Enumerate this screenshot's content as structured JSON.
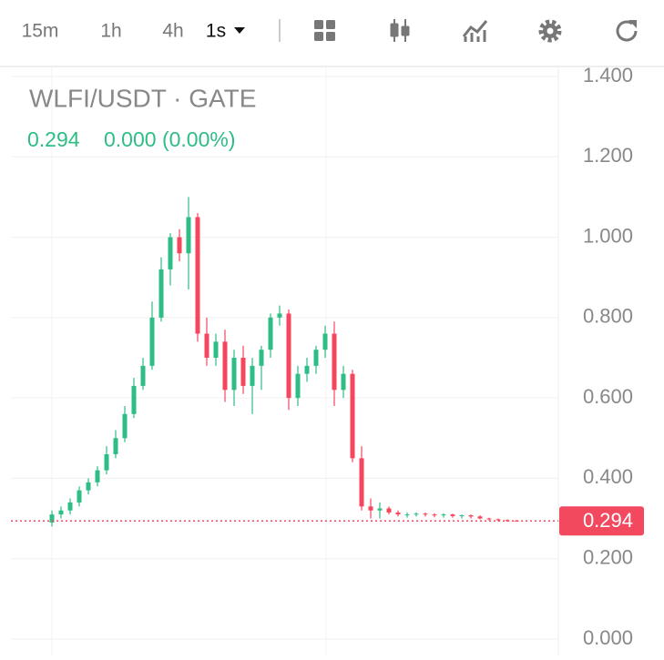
{
  "toolbar": {
    "intervals": [
      "15m",
      "1h",
      "4h",
      "1s"
    ]
  },
  "chart_data": {
    "type": "candlestick",
    "title": "WLFI/USDT · GATE",
    "last_price": 0.294,
    "change": "0.000 (0.00%)",
    "up_color": "#2ebd85",
    "down_color": "#f6465d",
    "ylim": [
      0,
      1.4
    ],
    "yticks": [
      {
        "value": 0,
        "label": "0.000"
      },
      {
        "value": 0.2,
        "label": "0.200"
      },
      {
        "value": 0.4,
        "label": "0.400"
      },
      {
        "value": 0.6,
        "label": "0.600"
      },
      {
        "value": 0.8,
        "label": "0.800"
      },
      {
        "value": 1.0,
        "label": "1.000"
      },
      {
        "value": 1.2,
        "label": "1.200"
      },
      {
        "value": 1.4,
        "label": "1.400"
      }
    ],
    "grid": true,
    "open": [
      0.29,
      0.31,
      0.32,
      0.34,
      0.37,
      0.39,
      0.42,
      0.46,
      0.5,
      0.56,
      0.63,
      0.68,
      0.8,
      0.92,
      1.0,
      0.96,
      1.05,
      0.76,
      0.7,
      0.74,
      0.62,
      0.7,
      0.63,
      0.68,
      0.72,
      0.8,
      0.81,
      0.6,
      0.66,
      0.68,
      0.72,
      0.76,
      0.62,
      0.66,
      0.45,
      0.33,
      0.32,
      0.325,
      0.315,
      0.31,
      0.31,
      0.312,
      0.31,
      0.308,
      0.31,
      0.306,
      0.308,
      0.305,
      0.3,
      0.298,
      0.296,
      0.295
    ],
    "high": [
      0.32,
      0.33,
      0.35,
      0.38,
      0.4,
      0.43,
      0.48,
      0.52,
      0.58,
      0.65,
      0.7,
      0.84,
      0.95,
      1.01,
      1.02,
      1.1,
      1.06,
      0.8,
      0.76,
      0.77,
      0.72,
      0.73,
      0.7,
      0.73,
      0.81,
      0.83,
      0.82,
      0.68,
      0.7,
      0.73,
      0.78,
      0.79,
      0.68,
      0.67,
      0.48,
      0.35,
      0.34,
      0.33,
      0.32,
      0.315,
      0.315,
      0.315,
      0.313,
      0.313,
      0.312,
      0.31,
      0.31,
      0.308,
      0.302,
      0.3,
      0.298,
      0.296
    ],
    "low": [
      0.28,
      0.3,
      0.31,
      0.33,
      0.36,
      0.38,
      0.41,
      0.45,
      0.49,
      0.55,
      0.62,
      0.67,
      0.79,
      0.88,
      0.94,
      0.87,
      0.74,
      0.68,
      0.68,
      0.59,
      0.58,
      0.61,
      0.56,
      0.62,
      0.7,
      0.78,
      0.57,
      0.58,
      0.64,
      0.66,
      0.7,
      0.58,
      0.6,
      0.44,
      0.32,
      0.3,
      0.3,
      0.31,
      0.305,
      0.302,
      0.305,
      0.305,
      0.303,
      0.302,
      0.302,
      0.3,
      0.3,
      0.298,
      0.295,
      0.294,
      0.292,
      0.292
    ],
    "close": [
      0.31,
      0.32,
      0.34,
      0.37,
      0.39,
      0.42,
      0.46,
      0.5,
      0.56,
      0.63,
      0.68,
      0.8,
      0.92,
      1.0,
      0.96,
      1.05,
      0.76,
      0.7,
      0.74,
      0.62,
      0.7,
      0.63,
      0.68,
      0.72,
      0.8,
      0.81,
      0.6,
      0.66,
      0.68,
      0.72,
      0.76,
      0.62,
      0.66,
      0.45,
      0.33,
      0.32,
      0.325,
      0.315,
      0.31,
      0.31,
      0.312,
      0.31,
      0.308,
      0.31,
      0.306,
      0.308,
      0.305,
      0.3,
      0.298,
      0.296,
      0.295,
      0.294
    ]
  }
}
